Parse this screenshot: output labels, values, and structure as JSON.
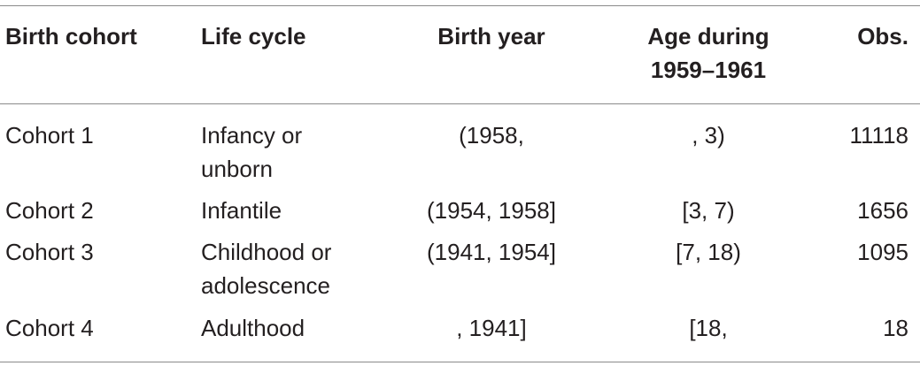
{
  "table": {
    "headers": {
      "birth_cohort": "Birth cohort",
      "life_cycle": "Life cycle",
      "birth_year": "Birth year",
      "age_during": "Age during\n1959–1961",
      "obs": "Obs."
    },
    "rows": [
      {
        "cohort": "Cohort 1",
        "life_cycle": "Infancy or\nunborn",
        "birth_year": "(1958,",
        "age": ", 3)",
        "obs": "11118"
      },
      {
        "cohort": "Cohort 2",
        "life_cycle": "Infantile",
        "birth_year": "(1954, 1958]",
        "age": "[3, 7)",
        "obs": "1656"
      },
      {
        "cohort": "Cohort 3",
        "life_cycle": "Childhood or\nadolescence",
        "birth_year": "(1941, 1954]",
        "age": "[7, 18)",
        "obs": "1095"
      },
      {
        "cohort": "Cohort 4",
        "life_cycle": "Adulthood",
        "birth_year": ", 1941]",
        "age": "[18,",
        "obs": "18"
      }
    ]
  }
}
